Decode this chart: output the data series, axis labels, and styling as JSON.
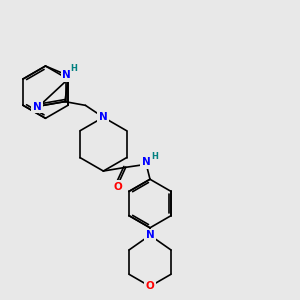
{
  "background_color": "#e8e8e8",
  "bond_color": "#000000",
  "atom_colors": {
    "N": "#0000ff",
    "O": "#ff0000",
    "H": "#008080",
    "C": "#000000"
  },
  "figsize": [
    3.0,
    3.0
  ],
  "dpi": 100
}
